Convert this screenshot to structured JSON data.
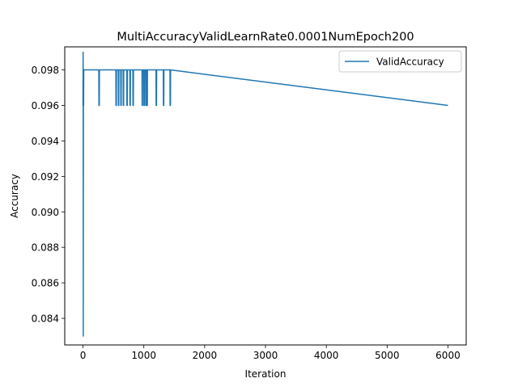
{
  "chart_data": {
    "type": "line",
    "title": "MultiAccuracyValidLearnRate0.0001NumEpoch200",
    "xlabel": "Iteration",
    "ylabel": "Accuracy",
    "xlim": [
      -300,
      6300
    ],
    "ylim": [
      0.0825,
      0.0993
    ],
    "xticks": [
      0,
      1000,
      2000,
      3000,
      4000,
      5000,
      6000
    ],
    "xtick_labels": [
      "0",
      "1000",
      "2000",
      "3000",
      "4000",
      "5000",
      "6000"
    ],
    "yticks": [
      0.084,
      0.086,
      0.088,
      0.09,
      0.092,
      0.094,
      0.096,
      0.098
    ],
    "ytick_labels": [
      "0.084",
      "0.086",
      "0.088",
      "0.090",
      "0.092",
      "0.094",
      "0.096",
      "0.098"
    ],
    "grid": false,
    "legend_position": "top-right",
    "series": [
      {
        "name": "ValidAccuracy",
        "color": "#1f77b4",
        "x": [
          0,
          2,
          4,
          6,
          8,
          10,
          12,
          15,
          20,
          260,
          262,
          268,
          270,
          540,
          542,
          548,
          550,
          580,
          582,
          588,
          590,
          620,
          622,
          628,
          630,
          660,
          662,
          668,
          670,
          720,
          722,
          728,
          730,
          770,
          772,
          778,
          780,
          820,
          822,
          828,
          830,
          970,
          972,
          978,
          980,
          1000,
          1002,
          1008,
          1010,
          1030,
          1032,
          1038,
          1040,
          1050,
          1052,
          1058,
          1060,
          1200,
          1202,
          1208,
          1210,
          1320,
          1322,
          1328,
          1330,
          1430,
          1432,
          1438,
          1440,
          6000
        ],
        "y": [
          0.096,
          0.099,
          0.083,
          0.096,
          0.098,
          0.096,
          0.098,
          0.098,
          0.098,
          0.098,
          0.096,
          0.096,
          0.098,
          0.098,
          0.096,
          0.096,
          0.098,
          0.098,
          0.096,
          0.096,
          0.098,
          0.098,
          0.096,
          0.096,
          0.098,
          0.098,
          0.096,
          0.096,
          0.098,
          0.098,
          0.096,
          0.096,
          0.098,
          0.098,
          0.096,
          0.096,
          0.098,
          0.098,
          0.096,
          0.096,
          0.098,
          0.098,
          0.096,
          0.096,
          0.098,
          0.098,
          0.096,
          0.096,
          0.098,
          0.098,
          0.096,
          0.096,
          0.098,
          0.098,
          0.096,
          0.096,
          0.098,
          0.098,
          0.096,
          0.096,
          0.098,
          0.098,
          0.096,
          0.096,
          0.098,
          0.098,
          0.096,
          0.096,
          0.098,
          0.096
        ]
      }
    ]
  }
}
